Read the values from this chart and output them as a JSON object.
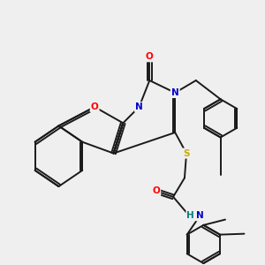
{
  "bg_color": "#efefef",
  "bond_color": "#1a1a1a",
  "bond_width": 1.4,
  "atom_colors": {
    "O": "#ff0000",
    "N": "#0000cc",
    "S": "#ccaa00",
    "C": "#1a1a1a"
  },
  "font_size": 7.5,
  "fig_size": [
    3.0,
    3.0
  ],
  "dpi": 100
}
